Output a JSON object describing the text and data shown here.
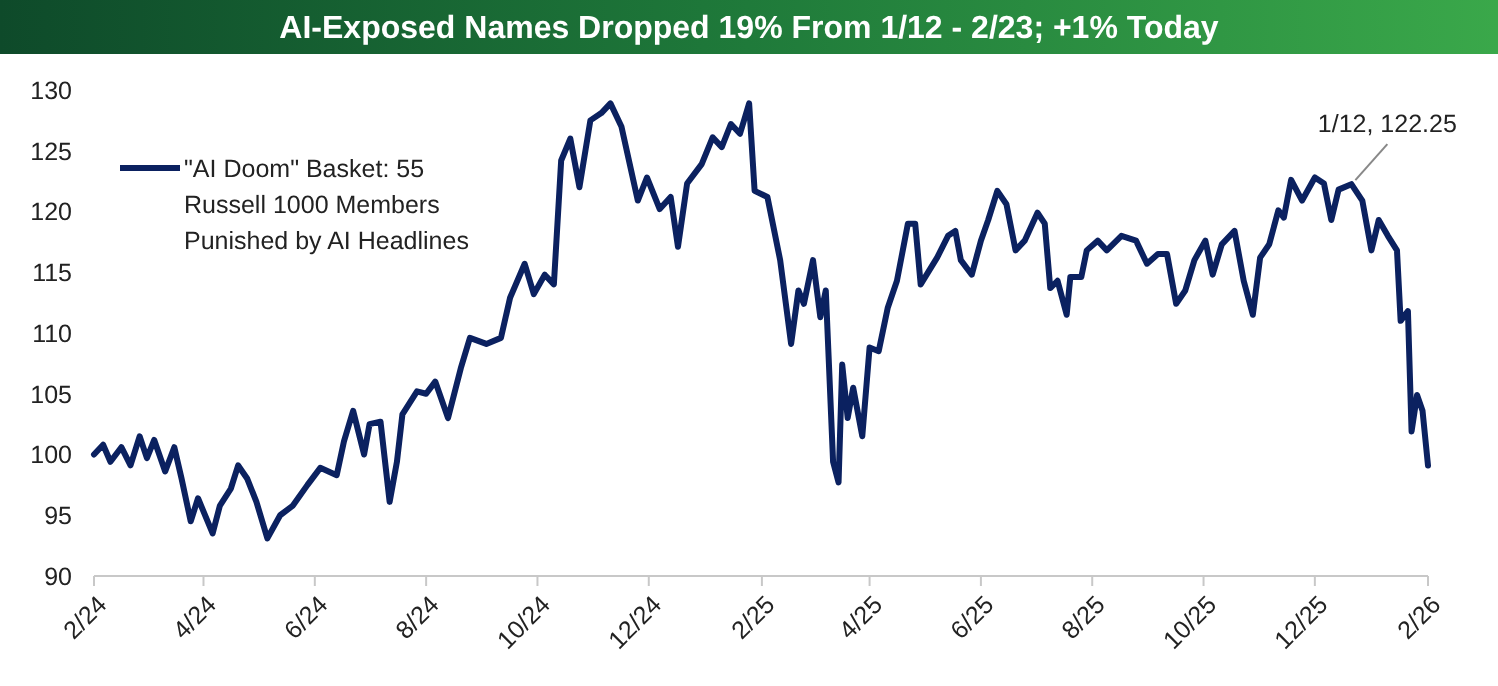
{
  "chart_data": {
    "type": "line",
    "title": "AI-Exposed Names Dropped 19% From 1/12 - 2/23; +1% Today",
    "xlim": [
      "2024-02-23",
      "2026-02-23"
    ],
    "xticks": [
      {
        "value": "2024-02-23",
        "label": "2/24"
      },
      {
        "value": "2024-04-23",
        "label": "4/24"
      },
      {
        "value": "2024-06-23",
        "label": "6/24"
      },
      {
        "value": "2024-08-23",
        "label": "8/24"
      },
      {
        "value": "2024-10-23",
        "label": "10/24"
      },
      {
        "value": "2024-12-23",
        "label": "12/24"
      },
      {
        "value": "2025-02-23",
        "label": "2/25"
      },
      {
        "value": "2025-04-23",
        "label": "4/25"
      },
      {
        "value": "2025-06-23",
        "label": "6/25"
      },
      {
        "value": "2025-08-23",
        "label": "8/25"
      },
      {
        "value": "2025-10-23",
        "label": "10/25"
      },
      {
        "value": "2025-12-23",
        "label": "12/25"
      },
      {
        "value": "2026-02-23",
        "label": "2/26"
      }
    ],
    "ylim": [
      90,
      130
    ],
    "yticks": [
      90,
      95,
      100,
      105,
      110,
      115,
      120,
      125,
      130
    ],
    "grid": false,
    "legend": "top left",
    "line_style": "solid",
    "marker": "none",
    "annotations": [
      {
        "text": "1/12, 122.25",
        "x": "2026-01-12",
        "y": 122.25
      }
    ],
    "series": [
      {
        "name": "\"AI Doom\" Basket: 55 Russell 1000 Members Punished by AI Headlines",
        "color": "#0b2160",
        "x": [
          "2024-02-23",
          "2024-02-28",
          "2024-03-03",
          "2024-03-09",
          "2024-03-14",
          "2024-03-19",
          "2024-03-23",
          "2024-03-27",
          "2024-04-02",
          "2024-04-07",
          "2024-04-11",
          "2024-04-16",
          "2024-04-20",
          "2024-04-28",
          "2024-05-02",
          "2024-05-08",
          "2024-05-12",
          "2024-05-17",
          "2024-05-22",
          "2024-05-28",
          "2024-06-04",
          "2024-06-11",
          "2024-06-19",
          "2024-06-26",
          "2024-07-05",
          "2024-07-09",
          "2024-07-14",
          "2024-07-20",
          "2024-07-23",
          "2024-07-29",
          "2024-08-03",
          "2024-08-07",
          "2024-08-10",
          "2024-08-18",
          "2024-08-23",
          "2024-08-28",
          "2024-09-04",
          "2024-09-11",
          "2024-09-16",
          "2024-09-25",
          "2024-10-03",
          "2024-10-08",
          "2024-10-16",
          "2024-10-21",
          "2024-10-27",
          "2024-11-01",
          "2024-11-05",
          "2024-11-10",
          "2024-11-15",
          "2024-11-21",
          "2024-11-27",
          "2024-12-02",
          "2024-12-08",
          "2024-12-17",
          "2024-12-22",
          "2024-12-29",
          "2025-01-04",
          "2025-01-08",
          "2025-01-13",
          "2025-01-21",
          "2025-01-27",
          "2025-02-01",
          "2025-02-06",
          "2025-02-11",
          "2025-02-16",
          "2025-02-19",
          "2025-02-26",
          "2025-03-05",
          "2025-03-11",
          "2025-03-15",
          "2025-03-18",
          "2025-03-23",
          "2025-03-27",
          "2025-03-30",
          "2025-04-03",
          "2025-04-06",
          "2025-04-08",
          "2025-04-11",
          "2025-04-14",
          "2025-04-19",
          "2025-04-23",
          "2025-04-28",
          "2025-05-03",
          "2025-05-08",
          "2025-05-14",
          "2025-05-18",
          "2025-05-21",
          "2025-05-30",
          "2025-06-05",
          "2025-06-09",
          "2025-06-12",
          "2025-06-18",
          "2025-06-23",
          "2025-06-27",
          "2025-07-02",
          "2025-07-07",
          "2025-07-12",
          "2025-07-17",
          "2025-07-24",
          "2025-07-28",
          "2025-07-31",
          "2025-08-04",
          "2025-08-09",
          "2025-08-11",
          "2025-08-17",
          "2025-08-20",
          "2025-08-26",
          "2025-08-31",
          "2025-09-08",
          "2025-09-16",
          "2025-09-22",
          "2025-09-28",
          "2025-10-03",
          "2025-10-08",
          "2025-10-13",
          "2025-10-18",
          "2025-10-24",
          "2025-10-28",
          "2025-11-02",
          "2025-11-09",
          "2025-11-14",
          "2025-11-19",
          "2025-11-23",
          "2025-11-28",
          "2025-12-03",
          "2025-12-06",
          "2025-12-10",
          "2025-12-16",
          "2025-12-23",
          "2025-12-28",
          "2026-01-01",
          "2026-01-05",
          "2026-01-12",
          "2026-01-18",
          "2026-01-23",
          "2026-01-27",
          "2026-02-01",
          "2026-02-06",
          "2026-02-08",
          "2026-02-12",
          "2026-02-14",
          "2026-02-17",
          "2026-02-20",
          "2026-02-23"
        ],
        "values": [
          100.0,
          100.8,
          99.4,
          100.6,
          99.1,
          101.5,
          99.7,
          101.2,
          98.6,
          100.6,
          98.0,
          94.5,
          96.4,
          93.5,
          95.8,
          97.2,
          99.1,
          98.0,
          96.1,
          93.1,
          95.0,
          95.8,
          97.5,
          98.9,
          98.3,
          101.1,
          103.6,
          100.0,
          102.5,
          102.7,
          96.1,
          99.4,
          103.3,
          105.2,
          105.0,
          106.0,
          103.0,
          107.1,
          109.6,
          109.1,
          109.6,
          112.9,
          115.7,
          113.2,
          114.8,
          114.0,
          124.2,
          126.0,
          122.0,
          127.5,
          128.1,
          128.9,
          127.0,
          120.9,
          122.8,
          120.2,
          121.2,
          117.1,
          122.3,
          123.9,
          126.1,
          125.3,
          127.2,
          126.4,
          128.9,
          121.7,
          121.2,
          116.0,
          109.1,
          113.5,
          112.4,
          116.0,
          111.3,
          113.5,
          99.4,
          97.7,
          107.4,
          103.0,
          105.5,
          101.5,
          108.8,
          108.5,
          112.1,
          114.3,
          119.0,
          119.0,
          114.0,
          116.2,
          118.0,
          118.4,
          116.0,
          114.8,
          117.6,
          119.3,
          121.7,
          120.6,
          116.8,
          117.6,
          119.9,
          119.0,
          113.7,
          114.3,
          111.5,
          114.6,
          114.6,
          116.8,
          117.6,
          116.8,
          118.0,
          117.6,
          115.7,
          116.5,
          116.5,
          112.4,
          113.5,
          116.0,
          117.6,
          114.8,
          117.3,
          118.4,
          114.3,
          111.5,
          116.2,
          117.3,
          120.1,
          119.5,
          122.6,
          120.9,
          122.8,
          122.3,
          119.3,
          121.8,
          122.25,
          120.9,
          116.8,
          119.3,
          118.0,
          116.8,
          111.0,
          111.8,
          101.9,
          104.9,
          103.6,
          99.1
        ]
      }
    ]
  }
}
